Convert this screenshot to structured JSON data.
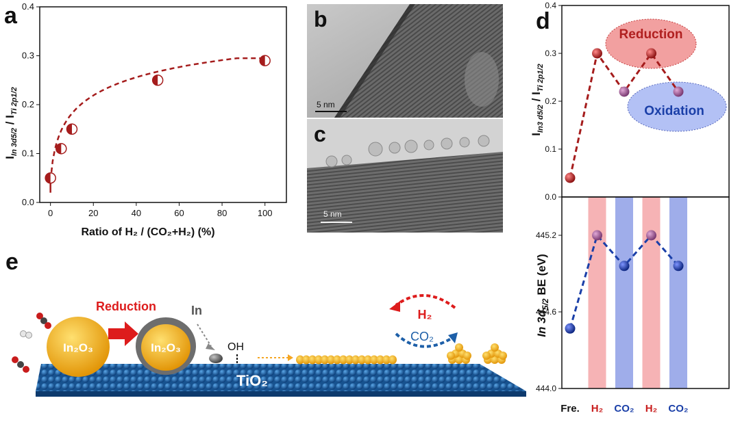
{
  "panels": {
    "a": "a",
    "b": "b",
    "c": "c",
    "d": "d",
    "e": "e"
  },
  "chart_a": {
    "type": "scatter",
    "ylabel_main": "I",
    "ylabel_sub1": "In 3d5/2",
    "ylabel_sep": " / I",
    "ylabel_sub2": "Ti 2p1/2",
    "xlabel": "Ratio of H₂ / (CO₂+H₂) (%)",
    "x_ticks": [
      "0",
      "20",
      "40",
      "60",
      "80",
      "100"
    ],
    "y_ticks": [
      "0.0",
      "0.1",
      "0.2",
      "0.3",
      "0.4"
    ]
  },
  "tem_b": {
    "letter": "b",
    "scale": "5 nm"
  },
  "tem_c": {
    "letter": "c",
    "scale": "5 nm"
  },
  "chart_d_top": {
    "ylabel_main": "I",
    "ylabel_sub1": "In3 d5/2",
    "ylabel_sep": " / I",
    "ylabel_sub2": "Ti 2p1/2",
    "y_ticks": [
      "0.0",
      "0.1",
      "0.2",
      "0.3",
      "0.4"
    ],
    "reduction_label": "Reduction",
    "oxidation_label": "Oxidation"
  },
  "chart_d_bottom": {
    "ylabel_pre": "In 3d",
    "ylabel_sub": "5/2",
    "ylabel_post": " BE (eV)",
    "y_ticks": [
      "444.0",
      "444.6",
      "445.2"
    ],
    "x_labels": [
      "Fre.",
      "H₂",
      "CO₂",
      "H₂",
      "CO₂"
    ]
  },
  "scheme_e": {
    "reduction_label": "Reduction",
    "in_label": "In",
    "oh_label": "OH",
    "h2_label": "H₂",
    "co2_label": "CO₂",
    "in2o3_label_1": "In₂O₃",
    "in2o3_label_2": "In₂O₃",
    "tio2_label": "TiO₂"
  },
  "colors": {
    "dark_red": "#a51c1c",
    "blue": "#1a3fa8",
    "pink_band": "#f4a6a8",
    "blue_band": "#8e9fe6",
    "gold": "#f5b300",
    "tio2_blue": "#1e6bb0"
  },
  "chart_data": [
    {
      "type": "scatter",
      "xlabel": "Ratio of H₂ / (CO₂+H₂) (%)",
      "ylabel": "I In 3d5/2 / I Ti 2p1/2",
      "xlim": [
        -5,
        110
      ],
      "ylim": [
        0,
        0.4
      ],
      "x": [
        0,
        5,
        10,
        50,
        100
      ],
      "y": [
        0.05,
        0.11,
        0.15,
        0.25,
        0.29
      ]
    },
    {
      "type": "line",
      "ylabel": "I In3 d5/2 / I Ti 2p1/2",
      "ylim": [
        0,
        0.4
      ],
      "categories": [
        "Fre.",
        "H₂",
        "CO₂",
        "H₂",
        "CO₂"
      ],
      "values": [
        0.04,
        0.3,
        0.22,
        0.3,
        0.22
      ]
    },
    {
      "type": "line",
      "ylabel": "In 3d5/2 BE (eV)",
      "ylim": [
        444.0,
        445.5
      ],
      "categories": [
        "Fre.",
        "H₂",
        "CO₂",
        "H₂",
        "CO₂"
      ],
      "values": [
        444.47,
        445.2,
        444.96,
        445.2,
        444.96
      ]
    }
  ]
}
